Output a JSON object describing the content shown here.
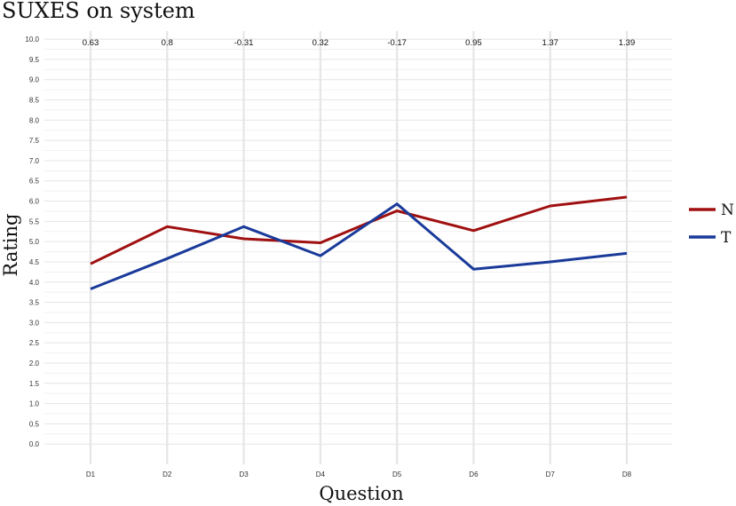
{
  "chart_data": {
    "type": "line",
    "title": "SUXES on system",
    "xlabel": "Question",
    "ylabel": "Rating",
    "categories": [
      "D1",
      "D2",
      "D3",
      "D4",
      "D5",
      "D6",
      "D7",
      "D8"
    ],
    "ylim": [
      -0.5,
      10.2
    ],
    "yticks": [
      "0.0",
      "0.5",
      "1.0",
      "1.5",
      "2.0",
      "2.5",
      "3.0",
      "3.5",
      "4.0",
      "4.5",
      "5.0",
      "5.5",
      "6.0",
      "6.5",
      "7.0",
      "7.5",
      "8.0",
      "8.5",
      "9.0",
      "9.5",
      "10.0"
    ],
    "grid": true,
    "legend_position": "right",
    "series": [
      {
        "name": "N",
        "color": "#a01010",
        "values": [
          4.45,
          5.37,
          5.07,
          4.97,
          5.76,
          5.27,
          5.88,
          6.1
        ]
      },
      {
        "name": "T",
        "color": "#1a3a9a",
        "values": [
          3.83,
          4.58,
          5.37,
          4.65,
          5.93,
          4.32,
          4.5,
          4.71
        ]
      }
    ],
    "annotations": [
      "0.63",
      "0.8",
      "-0.31",
      "0.32",
      "-0.17",
      "0.95",
      "1.37",
      "1.39"
    ]
  }
}
